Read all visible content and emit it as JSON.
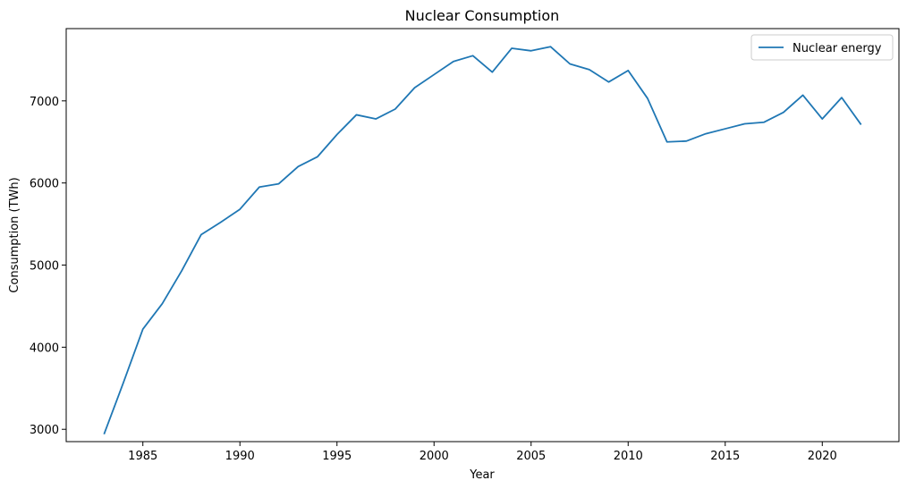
{
  "chart_data": {
    "type": "line",
    "title": "Nuclear Consumption",
    "xlabel": "Year",
    "ylabel": "Consumption (TWh)",
    "xlim": [
      1981.05,
      2023.95
    ],
    "ylim": [
      2850,
      7880
    ],
    "xticks": [
      1985,
      1990,
      1995,
      2000,
      2005,
      2010,
      2015,
      2020
    ],
    "yticks": [
      3000,
      4000,
      5000,
      6000,
      7000
    ],
    "grid": false,
    "legend_position": "top-right",
    "colors": {
      "series": "#1f77b4"
    },
    "series": [
      {
        "name": "Nuclear energy",
        "x": [
          1983,
          1984,
          1985,
          1986,
          1987,
          1988,
          1989,
          1990,
          1991,
          1992,
          1993,
          1994,
          1995,
          1996,
          1997,
          1998,
          1999,
          2000,
          2001,
          2002,
          2003,
          2004,
          2005,
          2006,
          2007,
          2008,
          2009,
          2010,
          2011,
          2012,
          2013,
          2014,
          2015,
          2016,
          2017,
          2018,
          2019,
          2020,
          2021,
          2022
        ],
        "y": [
          2940,
          3570,
          4220,
          4530,
          4930,
          5370,
          5520,
          5680,
          5950,
          5990,
          6200,
          6320,
          6590,
          6830,
          6780,
          6900,
          7160,
          7320,
          7480,
          7550,
          7350,
          7640,
          7610,
          7660,
          7450,
          7380,
          7230,
          7370,
          7030,
          6500,
          6510,
          6600,
          6660,
          6720,
          6740,
          6860,
          7070,
          6780,
          7040,
          6710
        ]
      }
    ]
  }
}
